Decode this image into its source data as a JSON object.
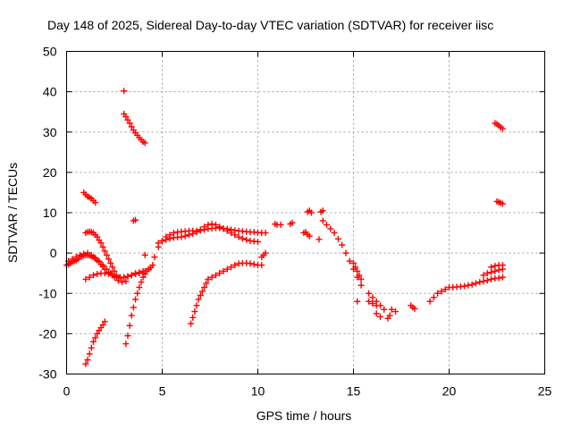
{
  "chart_data": {
    "type": "scatter",
    "title": "Day 148 of 2025, Sidereal Day-to-day VTEC variation (SDTVAR) for receiver iisc",
    "xlabel": "GPS time / hours",
    "ylabel": "SDTVAR / TECUs",
    "xlim": [
      0,
      25
    ],
    "ylim": [
      -30,
      50
    ],
    "xticks": [
      0,
      5,
      10,
      15,
      20,
      25
    ],
    "yticks": [
      -30,
      -20,
      -10,
      0,
      10,
      20,
      30,
      40,
      50
    ],
    "xtick_labels": [
      "0",
      "5",
      "10",
      "15",
      "20",
      "25"
    ],
    "ytick_labels": [
      "-30",
      "-20",
      "-10",
      "0",
      "10",
      "20",
      "30",
      "40",
      "50"
    ],
    "grid": true,
    "marker": "+",
    "marker_color": "#ff0000",
    "series": [
      {
        "name": "s1",
        "x": [
          0.0,
          0.1,
          0.2,
          0.3,
          0.4,
          0.5,
          0.6,
          0.7,
          0.8,
          0.9,
          1.0,
          1.1,
          1.2,
          1.3,
          1.4,
          1.5,
          1.6,
          1.7,
          1.8,
          1.9,
          2.0,
          2.2,
          2.4,
          2.6,
          2.8,
          3.0,
          3.2,
          3.4,
          3.6,
          3.8,
          4.0,
          4.1
        ],
        "y": [
          -3.0,
          -2.8,
          -2.5,
          -2.2,
          -2.0,
          -1.8,
          -1.5,
          -1.0,
          -0.8,
          -0.6,
          -0.5,
          -0.5,
          -0.6,
          -0.8,
          -1.0,
          -1.4,
          -1.8,
          -2.2,
          -2.8,
          -3.4,
          -4.0,
          -4.8,
          -5.5,
          -6.0,
          -6.2,
          -6.0,
          -5.8,
          -5.5,
          -5.0,
          -4.8,
          -4.5,
          -4.5
        ]
      },
      {
        "name": "s2",
        "x": [
          0.1,
          0.3,
          0.5,
          0.7,
          0.9,
          1.1,
          1.3,
          1.5,
          1.7,
          1.9,
          2.1,
          2.3,
          2.5,
          2.7,
          2.9,
          3.1
        ],
        "y": [
          -2.0,
          -1.5,
          -1.0,
          -0.5,
          -0.2,
          0.0,
          -0.5,
          -1.2,
          -2.0,
          -3.0,
          -4.0,
          -5.0,
          -6.0,
          -6.8,
          -7.2,
          -7.0
        ]
      },
      {
        "name": "s3",
        "x": [
          1.0,
          1.1,
          1.2,
          1.3,
          1.4,
          1.5,
          1.6,
          1.7,
          1.8,
          1.9,
          2.0,
          2.1,
          2.2,
          2.3,
          2.4,
          2.5,
          2.6
        ],
        "y": [
          5.0,
          5.2,
          5.3,
          5.2,
          5.0,
          4.5,
          4.0,
          3.2,
          2.5,
          1.5,
          0.5,
          -0.5,
          -1.5,
          -2.5,
          -3.5,
          -4.5,
          -5.5
        ]
      },
      {
        "name": "s4",
        "x": [
          0.9,
          1.0,
          1.1,
          1.2,
          1.3,
          1.4,
          1.5
        ],
        "y": [
          15.0,
          14.5,
          14.0,
          13.8,
          13.5,
          13.0,
          12.5
        ]
      },
      {
        "name": "s5",
        "x": [
          1.0,
          1.2,
          1.4,
          1.6,
          1.8,
          2.0,
          2.2,
          2.4,
          2.6,
          2.8,
          3.0,
          3.2,
          3.4,
          3.6,
          3.8,
          4.0
        ],
        "y": [
          -6.5,
          -6.0,
          -5.5,
          -5.2,
          -5.0,
          -5.0,
          -5.2,
          -5.5,
          -5.8,
          -6.0,
          -6.0,
          -5.8,
          -5.5,
          -5.2,
          -5.0,
          -5.0
        ]
      },
      {
        "name": "s6",
        "x": [
          1.0,
          1.1,
          1.2,
          1.3,
          1.4,
          1.5,
          1.6,
          1.7,
          1.8,
          1.9,
          2.0
        ],
        "y": [
          -27.5,
          -26.5,
          -25.0,
          -23.5,
          -22.0,
          -21.0,
          -20.0,
          -19.2,
          -18.5,
          -17.8,
          -17.0
        ]
      },
      {
        "name": "s7",
        "x": [
          3.1,
          3.2,
          3.3,
          3.4,
          3.5,
          3.6,
          3.7,
          3.8,
          3.9,
          4.0,
          4.1,
          4.2,
          4.3,
          4.4
        ],
        "y": [
          -22.5,
          -20.5,
          -18.0,
          -15.5,
          -13.5,
          -11.5,
          -10.0,
          -8.5,
          -7.2,
          -6.0,
          -5.2,
          -4.5,
          -4.0,
          -3.6
        ]
      },
      {
        "name": "s8",
        "x": [
          3.0
        ],
        "y": [
          40.2
        ]
      },
      {
        "name": "s9",
        "x": [
          3.0,
          3.1,
          3.2,
          3.3,
          3.4,
          3.5,
          3.6,
          3.7,
          3.8,
          3.9,
          4.0,
          4.1
        ],
        "y": [
          34.5,
          33.8,
          33.0,
          32.2,
          31.3,
          30.5,
          29.8,
          29.2,
          28.6,
          28.1,
          27.6,
          27.3
        ]
      },
      {
        "name": "s10",
        "x": [
          3.5,
          3.6
        ],
        "y": [
          8.0,
          8.2
        ]
      },
      {
        "name": "s11",
        "x": [
          4.1
        ],
        "y": [
          -0.5
        ]
      },
      {
        "name": "s12",
        "x": [
          4.5,
          4.6,
          4.8,
          5.0,
          5.2,
          5.4,
          5.6,
          5.8,
          6.0,
          6.2,
          6.4,
          6.6,
          6.8,
          7.0,
          7.2,
          7.4,
          7.6,
          7.8,
          8.0,
          8.2,
          8.4,
          8.6,
          8.8,
          9.0,
          9.2,
          9.4,
          9.6,
          9.8,
          10.0,
          10.2,
          10.4
        ],
        "y": [
          -3.0,
          -1.0,
          1.5,
          3.0,
          4.0,
          4.5,
          5.0,
          5.2,
          5.3,
          5.4,
          5.5,
          5.5,
          5.5,
          5.6,
          5.8,
          6.0,
          6.1,
          6.2,
          6.2,
          6.1,
          6.0,
          5.8,
          5.6,
          5.5,
          5.4,
          5.3,
          5.2,
          5.2,
          5.1,
          5.0,
          5.0
        ]
      },
      {
        "name": "s13",
        "x": [
          4.8,
          5.0,
          5.2,
          5.4,
          5.6,
          5.8,
          6.0,
          6.2,
          6.4,
          6.6,
          6.8,
          7.0,
          7.2,
          7.4,
          7.6,
          7.8,
          8.0,
          8.2,
          8.4,
          8.6,
          8.8,
          9.0,
          9.2,
          9.4,
          9.6,
          9.8,
          10.0
        ],
        "y": [
          2.5,
          3.0,
          3.3,
          3.6,
          3.8,
          3.9,
          4.0,
          4.2,
          4.5,
          4.8,
          5.2,
          5.8,
          6.5,
          7.0,
          7.2,
          7.0,
          6.5,
          6.0,
          5.5,
          5.0,
          4.5,
          4.0,
          3.6,
          3.3,
          3.0,
          2.9,
          2.8
        ]
      },
      {
        "name": "s14",
        "x": [
          6.5,
          6.6,
          6.7,
          6.8,
          6.9,
          7.0,
          7.1,
          7.2,
          7.3,
          7.4,
          7.6,
          7.8,
          8.0,
          8.2,
          8.4,
          8.6,
          8.8,
          9.0,
          9.2,
          9.4,
          9.6,
          9.8,
          10.0,
          10.2
        ],
        "y": [
          -17.5,
          -16.0,
          -14.5,
          -13.0,
          -11.5,
          -10.5,
          -9.5,
          -8.5,
          -7.5,
          -6.5,
          -6.0,
          -5.5,
          -5.0,
          -4.5,
          -4.0,
          -3.5,
          -3.0,
          -2.6,
          -2.5,
          -2.5,
          -2.6,
          -2.8,
          -3.0,
          -3.0
        ]
      },
      {
        "name": "s15",
        "x": [
          10.2,
          10.3,
          10.4
        ],
        "y": [
          -1.0,
          -0.5,
          0.0
        ]
      },
      {
        "name": "s16",
        "x": [
          10.9,
          11.0,
          11.2
        ],
        "y": [
          7.2,
          7.0,
          7.0
        ]
      },
      {
        "name": "s17",
        "x": [
          11.7,
          11.8
        ],
        "y": [
          7.2,
          7.5
        ]
      },
      {
        "name": "s18",
        "x": [
          12.4,
          12.5,
          12.6,
          12.7
        ],
        "y": [
          5.0,
          5.2,
          4.6,
          4.2
        ]
      },
      {
        "name": "s19",
        "x": [
          12.6,
          12.7,
          12.8
        ],
        "y": [
          10.2,
          10.5,
          10.0
        ]
      },
      {
        "name": "s20",
        "x": [
          13.3,
          13.4
        ],
        "y": [
          10.2,
          10.5
        ]
      },
      {
        "name": "s21",
        "x": [
          13.2
        ],
        "y": [
          3.4
        ]
      },
      {
        "name": "s22",
        "x": [
          13.4,
          13.6,
          13.8,
          14.0,
          14.2,
          14.4,
          14.6,
          14.8,
          15.0,
          15.2,
          15.4
        ],
        "y": [
          8.0,
          7.0,
          6.0,
          5.0,
          3.5,
          2.0,
          0.0,
          -2.0,
          -4.0,
          -6.0,
          -8.0
        ]
      },
      {
        "name": "s23",
        "x": [
          15.0,
          15.1,
          15.2,
          15.3,
          15.4
        ],
        "y": [
          -2.5,
          -3.5,
          -4.5,
          -5.5,
          -6.5
        ]
      },
      {
        "name": "s24",
        "x": [
          15.2
        ],
        "y": [
          -12.0
        ]
      },
      {
        "name": "s25",
        "x": [
          15.8,
          16.0,
          16.2,
          16.4,
          16.6
        ],
        "y": [
          -10.0,
          -11.0,
          -12.0,
          -13.0,
          -14.0
        ]
      },
      {
        "name": "s26",
        "x": [
          15.8,
          16.0,
          16.2
        ],
        "y": [
          -12.0,
          -12.5,
          -13.0
        ]
      },
      {
        "name": "s27",
        "x": [
          16.2,
          16.4
        ],
        "y": [
          -15.0,
          -15.8
        ]
      },
      {
        "name": "s28",
        "x": [
          16.8,
          16.9
        ],
        "y": [
          -16.2,
          -15.5
        ]
      },
      {
        "name": "s29",
        "x": [
          17.0,
          17.2
        ],
        "y": [
          -14.0,
          -14.5
        ]
      },
      {
        "name": "s30",
        "x": [
          18.0,
          18.1,
          18.2
        ],
        "y": [
          -13.0,
          -13.5,
          -13.8
        ]
      },
      {
        "name": "s31",
        "x": [
          19.0,
          19.2,
          19.4,
          19.6,
          19.8,
          20.0,
          20.2,
          20.4,
          20.6,
          20.8,
          21.0,
          21.2,
          21.4,
          21.6,
          21.8,
          22.0,
          22.2,
          22.4,
          22.6,
          22.8
        ],
        "y": [
          -12.0,
          -11.0,
          -10.0,
          -9.5,
          -9.0,
          -8.5,
          -8.5,
          -8.4,
          -8.3,
          -8.2,
          -8.0,
          -7.8,
          -7.5,
          -7.2,
          -7.0,
          -6.8,
          -6.5,
          -6.3,
          -6.2,
          -6.0
        ]
      },
      {
        "name": "s32",
        "x": [
          21.8,
          22.0,
          22.2,
          22.4,
          22.6,
          22.8
        ],
        "y": [
          -5.5,
          -5.0,
          -4.8,
          -4.5,
          -4.2,
          -4.0
        ]
      },
      {
        "name": "s33",
        "x": [
          22.2,
          22.4,
          22.6,
          22.8
        ],
        "y": [
          -3.5,
          -3.2,
          -3.0,
          -3.0
        ]
      },
      {
        "name": "s34",
        "x": [
          22.5,
          22.6,
          22.7,
          22.8
        ],
        "y": [
          12.8,
          12.6,
          12.4,
          12.2
        ]
      },
      {
        "name": "s35",
        "x": [
          22.4,
          22.5,
          22.6,
          22.7,
          22.8
        ],
        "y": [
          32.2,
          32.0,
          31.6,
          31.2,
          30.8
        ]
      }
    ]
  }
}
